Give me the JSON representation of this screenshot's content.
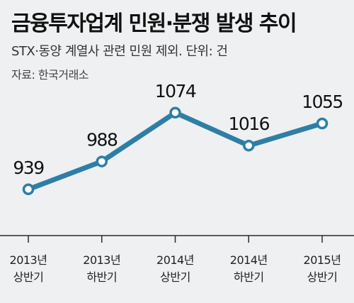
{
  "title": "금융투자업계 민원·분쟁 발생 추이",
  "subtitle": "STX·동양 계열사 관련 민원 제외. 단위: 건",
  "source": "자료: 한국거래소",
  "colors": {
    "line": "#2e7ea6",
    "background": "#eef0f1",
    "baseline": "#2a2a2a"
  },
  "chart_data": {
    "type": "line",
    "categories": [
      [
        "2013년",
        "상반기"
      ],
      [
        "2013년",
        "하반기"
      ],
      [
        "2014년",
        "상반기"
      ],
      [
        "2014년",
        "하반기"
      ],
      [
        "2015년",
        "상반기"
      ]
    ],
    "values": [
      939,
      988,
      1074,
      1016,
      1055
    ],
    "ylim": [
      880,
      1120
    ],
    "grid": false,
    "legend": "none"
  }
}
